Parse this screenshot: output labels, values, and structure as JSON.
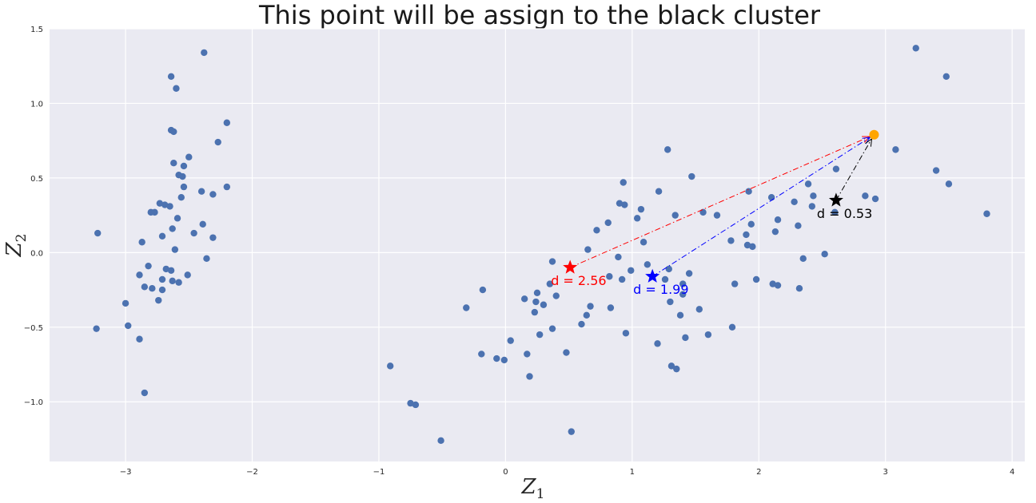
{
  "chart_data": {
    "type": "scatter",
    "title": "This point will be assign to the black cluster",
    "xlabel": "Z",
    "xlabel_sub": "1",
    "ylabel": "Z",
    "ylabel_sub": "2",
    "xlim": [
      -3.6,
      4.1
    ],
    "ylim": [
      -1.4,
      1.5
    ],
    "xticks": [
      -3,
      -2,
      -1,
      0,
      1,
      2,
      3,
      4
    ],
    "xtick_labels": [
      "−3",
      "−2",
      "−1",
      "0",
      "1",
      "2",
      "3",
      "4"
    ],
    "yticks": [
      -1.0,
      -0.5,
      0.0,
      0.5,
      1.0,
      1.5
    ],
    "ytick_labels": [
      "−1.0",
      "−0.5",
      "0.0",
      "0.5",
      "1.0",
      "1.5"
    ],
    "grid": true,
    "background": "#eaeaf2",
    "point_color": "#4c72b0",
    "points": [
      [
        -2.38,
        1.34
      ],
      [
        -2.64,
        1.18
      ],
      [
        -2.6,
        1.1
      ],
      [
        -2.2,
        0.87
      ],
      [
        -2.64,
        0.82
      ],
      [
        -2.62,
        0.81
      ],
      [
        -2.27,
        0.74
      ],
      [
        -2.5,
        0.64
      ],
      [
        -2.62,
        0.6
      ],
      [
        -2.54,
        0.58
      ],
      [
        -2.58,
        0.52
      ],
      [
        -2.55,
        0.51
      ],
      [
        -2.54,
        0.44
      ],
      [
        -2.2,
        0.44
      ],
      [
        -2.4,
        0.41
      ],
      [
        -2.31,
        0.39
      ],
      [
        -2.56,
        0.37
      ],
      [
        -2.73,
        0.33
      ],
      [
        -2.69,
        0.32
      ],
      [
        -2.65,
        0.31
      ],
      [
        -2.8,
        0.27
      ],
      [
        -2.77,
        0.27
      ],
      [
        -2.59,
        0.23
      ],
      [
        -2.39,
        0.19
      ],
      [
        -2.63,
        0.16
      ],
      [
        -2.46,
        0.13
      ],
      [
        -3.22,
        0.13
      ],
      [
        -2.71,
        0.11
      ],
      [
        -2.31,
        0.1
      ],
      [
        -2.87,
        0.07
      ],
      [
        -2.61,
        0.02
      ],
      [
        -2.36,
        -0.04
      ],
      [
        -2.82,
        -0.09
      ],
      [
        -2.68,
        -0.11
      ],
      [
        -2.64,
        -0.12
      ],
      [
        -2.89,
        -0.15
      ],
      [
        -2.51,
        -0.15
      ],
      [
        -2.71,
        -0.18
      ],
      [
        -2.63,
        -0.19
      ],
      [
        -2.58,
        -0.2
      ],
      [
        -2.85,
        -0.23
      ],
      [
        -2.79,
        -0.24
      ],
      [
        -2.71,
        -0.25
      ],
      [
        -2.74,
        -0.32
      ],
      [
        -3.0,
        -0.34
      ],
      [
        -3.23,
        -0.51
      ],
      [
        -2.98,
        -0.49
      ],
      [
        -2.89,
        -0.58
      ],
      [
        -2.85,
        -0.94
      ],
      [
        -0.91,
        -0.76
      ],
      [
        -0.75,
        -1.01
      ],
      [
        -0.71,
        -1.02
      ],
      [
        -0.51,
        -1.26
      ],
      [
        -0.31,
        -0.37
      ],
      [
        -0.18,
        -0.25
      ],
      [
        -0.19,
        -0.68
      ],
      [
        -0.07,
        -0.71
      ],
      [
        -0.01,
        -0.72
      ],
      [
        0.04,
        -0.59
      ],
      [
        0.15,
        -0.31
      ],
      [
        0.17,
        -0.68
      ],
      [
        0.19,
        -0.83
      ],
      [
        0.23,
        -0.4
      ],
      [
        0.24,
        -0.33
      ],
      [
        0.25,
        -0.27
      ],
      [
        0.27,
        -0.55
      ],
      [
        0.3,
        -0.35
      ],
      [
        0.35,
        -0.21
      ],
      [
        0.37,
        -0.06
      ],
      [
        0.37,
        -0.51
      ],
      [
        0.4,
        -0.29
      ],
      [
        0.48,
        -0.67
      ],
      [
        0.52,
        -1.2
      ],
      [
        0.6,
        -0.48
      ],
      [
        0.64,
        -0.42
      ],
      [
        0.65,
        0.02
      ],
      [
        0.67,
        -0.36
      ],
      [
        0.72,
        0.15
      ],
      [
        0.81,
        0.2
      ],
      [
        0.82,
        -0.16
      ],
      [
        0.83,
        -0.37
      ],
      [
        0.89,
        -0.03
      ],
      [
        0.9,
        0.33
      ],
      [
        0.92,
        -0.18
      ],
      [
        0.93,
        0.47
      ],
      [
        0.94,
        0.32
      ],
      [
        0.95,
        -0.54
      ],
      [
        0.99,
        -0.12
      ],
      [
        1.04,
        0.23
      ],
      [
        1.07,
        0.29
      ],
      [
        1.09,
        0.07
      ],
      [
        1.12,
        -0.08
      ],
      [
        1.2,
        -0.61
      ],
      [
        1.21,
        0.41
      ],
      [
        1.26,
        -0.18
      ],
      [
        1.28,
        0.69
      ],
      [
        1.29,
        -0.11
      ],
      [
        1.3,
        -0.33
      ],
      [
        1.31,
        -0.76
      ],
      [
        1.34,
        0.25
      ],
      [
        1.35,
        -0.78
      ],
      [
        1.38,
        -0.42
      ],
      [
        1.4,
        -0.21
      ],
      [
        1.4,
        -0.28
      ],
      [
        1.42,
        -0.57
      ],
      [
        1.45,
        -0.14
      ],
      [
        1.47,
        0.51
      ],
      [
        1.53,
        -0.38
      ],
      [
        1.56,
        0.27
      ],
      [
        1.6,
        -0.55
      ],
      [
        1.67,
        0.25
      ],
      [
        1.78,
        0.08
      ],
      [
        1.79,
        -0.5
      ],
      [
        1.81,
        -0.21
      ],
      [
        1.9,
        0.12
      ],
      [
        1.91,
        0.05
      ],
      [
        1.92,
        0.41
      ],
      [
        1.94,
        0.19
      ],
      [
        1.95,
        0.04
      ],
      [
        1.98,
        -0.18
      ],
      [
        2.1,
        0.37
      ],
      [
        2.11,
        -0.21
      ],
      [
        2.13,
        0.14
      ],
      [
        2.15,
        0.22
      ],
      [
        2.15,
        -0.22
      ],
      [
        2.28,
        0.34
      ],
      [
        2.31,
        0.18
      ],
      [
        2.32,
        -0.24
      ],
      [
        2.35,
        -0.04
      ],
      [
        2.39,
        0.46
      ],
      [
        2.42,
        0.31
      ],
      [
        2.43,
        0.38
      ],
      [
        2.52,
        -0.01
      ],
      [
        2.6,
        0.27
      ],
      [
        2.61,
        0.56
      ],
      [
        2.84,
        0.38
      ],
      [
        2.92,
        0.36
      ],
      [
        3.08,
        0.69
      ],
      [
        3.24,
        1.37
      ],
      [
        3.4,
        0.55
      ],
      [
        3.48,
        1.18
      ],
      [
        3.5,
        0.46
      ],
      [
        3.8,
        0.26
      ]
    ],
    "new_point": {
      "x": 2.91,
      "y": 0.79,
      "color": "#ffa500"
    },
    "centroids": [
      {
        "name": "red",
        "x": 0.51,
        "y": -0.1,
        "color": "#ff0000",
        "label": "d = 2.56"
      },
      {
        "name": "blue",
        "x": 1.16,
        "y": -0.16,
        "color": "#0000ff",
        "label": "d = 1.99"
      },
      {
        "name": "black",
        "x": 2.61,
        "y": 0.35,
        "color": "#000000",
        "label": "d = 0.53"
      }
    ]
  }
}
